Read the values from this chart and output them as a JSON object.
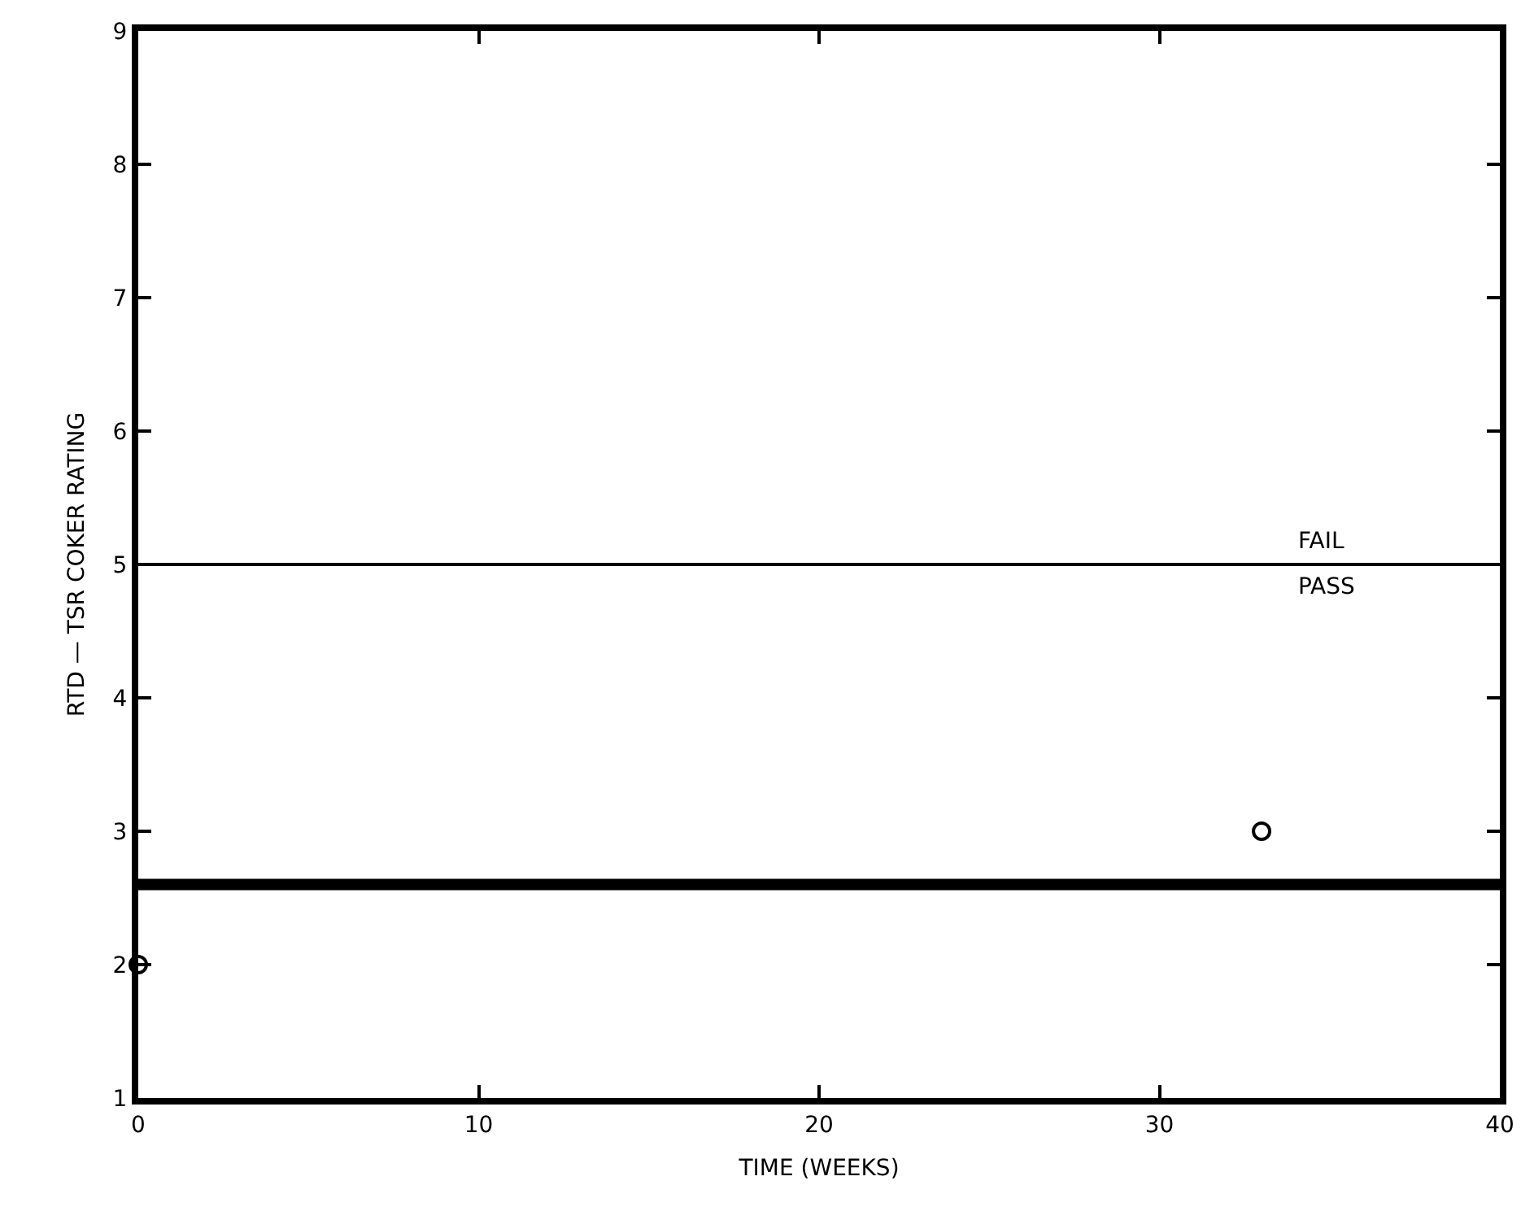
{
  "chart_data": {
    "type": "scatter",
    "xlabel": "TIME (WEEKS)",
    "ylabel": "RTD — TSR COKER RATING",
    "x": [
      0,
      33
    ],
    "values": [
      2,
      3
    ],
    "color": "#000000",
    "marker": "circle",
    "xlim": [
      0,
      40
    ],
    "xticks": [
      0,
      10,
      20,
      30,
      40
    ],
    "ylim": [
      1,
      9
    ],
    "yticks": [
      1,
      2,
      3,
      4,
      5,
      6,
      7,
      8,
      9
    ],
    "legend": false,
    "ref_lines": [
      {
        "axis": "y",
        "value": 5,
        "color": "#000000",
        "line_style": "solid"
      },
      {
        "axis": "y",
        "value": 2.6,
        "color": "#000000",
        "line_style": "solid"
      }
    ],
    "annotations": [
      {
        "text": "FAIL",
        "x": 34,
        "y": 5
      },
      {
        "text": "PASS",
        "x": 34,
        "y": 5
      }
    ]
  }
}
